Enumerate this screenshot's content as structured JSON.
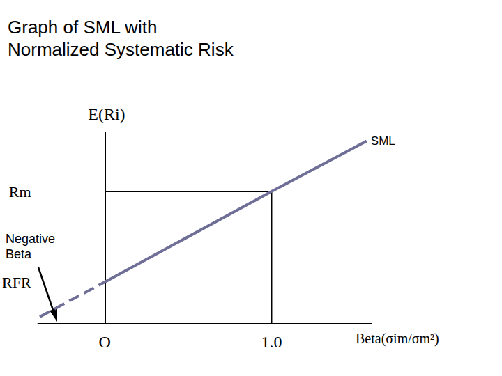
{
  "chart_data": {
    "type": "line",
    "title": "Graph of SML with\nNormalized Systematic Risk",
    "x_label": "Beta(σim/σm²)",
    "y_label": "E(Ri)",
    "xlim": [
      -0.4,
      1.6
    ],
    "ylim": [
      0,
      1.1
    ],
    "xticks": [
      {
        "value": 0,
        "label": "O"
      },
      {
        "value": 1,
        "label": "1.0"
      }
    ],
    "yticks": [
      {
        "value": 0.24,
        "label": "RFR"
      },
      {
        "value": 0.76,
        "label": "Rm"
      }
    ],
    "grid": false,
    "series": [
      {
        "name": "SML",
        "color": "#6e6e96",
        "line_style": "solid",
        "x": [
          0,
          1,
          1.57
        ],
        "values": [
          0.24,
          0.76,
          1.05
        ]
      },
      {
        "name": "Negative Beta",
        "color": "#6e6e96",
        "line_style": "dashed",
        "x": [
          -0.39,
          0
        ],
        "values": [
          0.04,
          0.24
        ]
      }
    ]
  }
}
